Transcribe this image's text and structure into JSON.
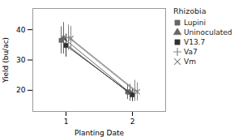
{
  "chart_data": {
    "type": "line",
    "xlabel": "Planting Date",
    "ylabel": "Yield (bu/ac)",
    "x": [
      1,
      2
    ],
    "xlim": [
      0.5,
      2.5
    ],
    "xticks": [
      1,
      2
    ],
    "ylim": [
      13,
      47
    ],
    "yticks": [
      20,
      30,
      40
    ],
    "legend": "right",
    "legend_title": "Rhizobia",
    "series": [
      {
        "name": "Lupini",
        "color": "#666666",
        "marker": "square",
        "values": [
          36.5,
          19.5
        ],
        "errors": [
          4.5,
          2.5
        ]
      },
      {
        "name": "Uninoculated",
        "color": "#666666",
        "marker": "triangle",
        "values": [
          37.2,
          19.2
        ],
        "errors": [
          5.2,
          2.8
        ]
      },
      {
        "name": "V13.7",
        "color": "#333333",
        "marker": "square",
        "values": [
          34.8,
          18.5
        ],
        "errors": [
          3.8,
          2.2
        ]
      },
      {
        "name": "Va7",
        "color": "#888888",
        "marker": "plus",
        "values": [
          37.4,
          19.8
        ],
        "errors": [
          4.2,
          3.5
        ]
      },
      {
        "name": "Vm",
        "color": "#888888",
        "marker": "x",
        "values": [
          37.1,
          19.5
        ],
        "errors": [
          4.0,
          3.0
        ]
      }
    ]
  }
}
